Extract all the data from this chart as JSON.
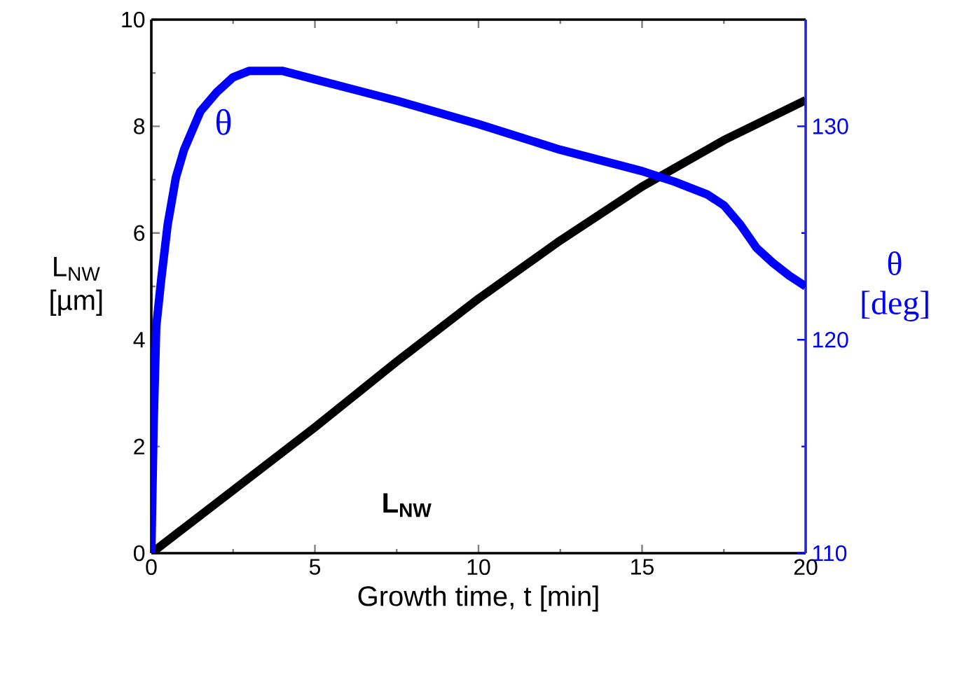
{
  "chart_data": {
    "type": "line",
    "xlabel": "Growth time, t  [min]",
    "ylabel": "L$_{NW}$ [µm]",
    "y2label": "θ [deg]",
    "xlim": [
      0,
      20
    ],
    "xticks": [
      0,
      5,
      10,
      15,
      20
    ],
    "ylim": [
      0,
      10
    ],
    "yticks": [
      0,
      2,
      4,
      6,
      8,
      10
    ],
    "y2lim": [
      110,
      135
    ],
    "y2ticks": [
      110,
      120,
      130
    ],
    "marker": "none",
    "line_style": "solid",
    "grid": false,
    "series": [
      {
        "name": "L$_{NW}$",
        "color": "#000000",
        "x": [
          0,
          2.5,
          5,
          7.5,
          10,
          12.5,
          15,
          17.5,
          20
        ],
        "values": [
          0,
          1.18,
          2.36,
          3.59,
          4.77,
          5.86,
          6.87,
          7.74,
          8.49
        ]
      },
      {
        "name": "θ",
        "color": "#0000ff",
        "axis": "y2",
        "x": [
          0,
          0.07,
          0.15,
          0.3,
          0.5,
          0.75,
          1,
          1.5,
          2,
          2.5,
          3,
          4,
          5,
          7.5,
          10,
          12.5,
          15,
          16,
          17,
          17.5,
          18,
          18.5,
          19,
          19.5,
          20
        ],
        "values": [
          110,
          116,
          120.6,
          122.8,
          125.4,
          127.6,
          128.9,
          130.7,
          131.6,
          132.3,
          132.6,
          132.6,
          132.2,
          131.2,
          130.1,
          128.9,
          127.9,
          127.4,
          126.8,
          126.3,
          125.4,
          124.3,
          123.6,
          123.0,
          122.5
        ]
      }
    ]
  }
}
